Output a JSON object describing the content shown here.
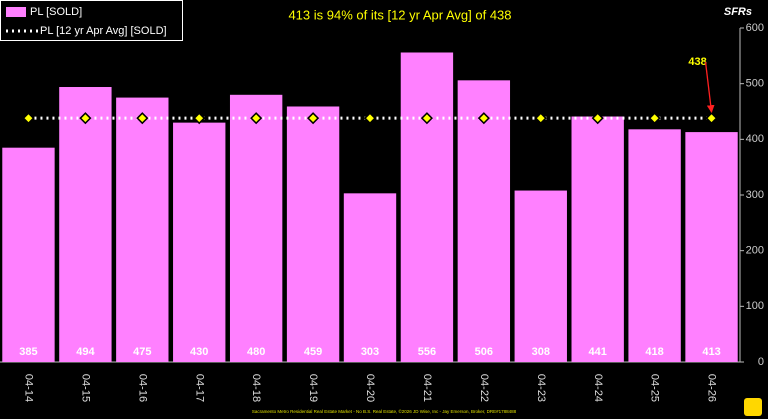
{
  "chart_data": {
    "type": "bar",
    "title": "413 is 94% of its [12 yr Apr Avg] of 438",
    "y_axis_label": "SFRs",
    "categories": [
      "04-14",
      "04-15",
      "04-16",
      "04-17",
      "04-18",
      "04-19",
      "04-20",
      "04-21",
      "04-22",
      "04-23",
      "04-24",
      "04-25",
      "04-26"
    ],
    "series": [
      {
        "name": "PL [SOLD]",
        "color": "#ff80ff",
        "values": [
          385,
          494,
          475,
          430,
          480,
          459,
          303,
          556,
          506,
          308,
          441,
          418,
          413
        ]
      },
      {
        "name": "PL [12 yr Apr Avg] [SOLD]",
        "color": "#ffff00",
        "values": [
          438,
          438,
          438,
          438,
          438,
          438,
          438,
          438,
          438,
          438,
          438,
          438,
          438
        ]
      }
    ],
    "annotation": "438",
    "ylim": [
      0,
      600
    ],
    "yticks": [
      0,
      100,
      200,
      300,
      400,
      500,
      600
    ],
    "footer": "Sacramento Metro Residential Real Estate Market - No B.S. Real Estate, ©2026 JD Wise, Inc - Jay Emerson, Broker, DRE#1788488"
  }
}
